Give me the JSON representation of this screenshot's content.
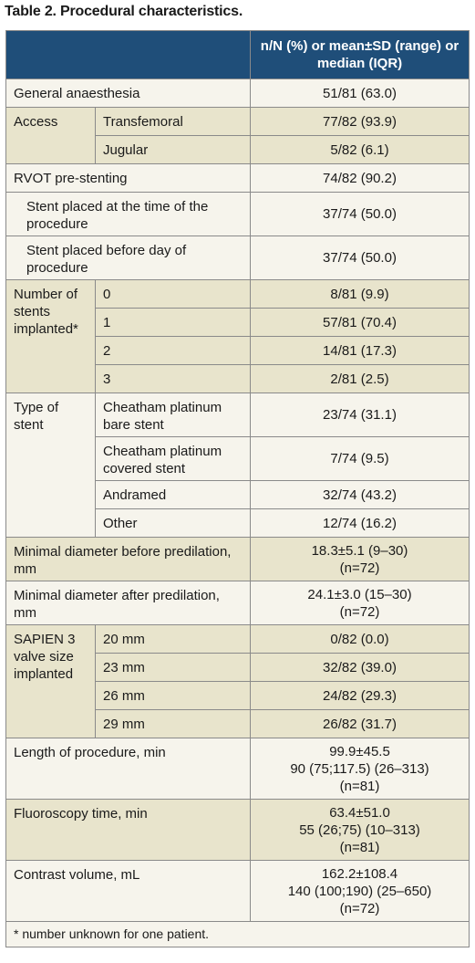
{
  "caption": "Table 2. Procedural characteristics.",
  "header": {
    "col_stat": "n/N (%) or mean±SD (range) or median (IQR)"
  },
  "rows": {
    "general_anaesthesia": {
      "label": "General anaesthesia",
      "value": "51/81 (63.0)"
    },
    "access": {
      "label": "Access",
      "items": [
        {
          "label": "Transfemoral",
          "value": "77/82 (93.9)"
        },
        {
          "label": "Jugular",
          "value": "5/82 (6.1)"
        }
      ]
    },
    "rvot_prestenting": {
      "label": "RVOT pre-stenting",
      "value": "74/82 (90.2)"
    },
    "stent_at_procedure": {
      "label": "Stent placed at the time of the procedure",
      "value": "37/74 (50.0)"
    },
    "stent_before_day": {
      "label": "Stent placed before day of procedure",
      "value": "37/74 (50.0)"
    },
    "num_stents": {
      "label": "Number of stents implanted*",
      "items": [
        {
          "label": "0",
          "value": "8/81 (9.9)"
        },
        {
          "label": "1",
          "value": "57/81 (70.4)"
        },
        {
          "label": "2",
          "value": "14/81 (17.3)"
        },
        {
          "label": "3",
          "value": "2/81 (2.5)"
        }
      ]
    },
    "stent_type": {
      "label": "Type of stent",
      "items": [
        {
          "label": "Cheatham platinum bare stent",
          "value": "23/74 (31.1)"
        },
        {
          "label": "Cheatham platinum covered stent",
          "value": "7/74 (9.5)"
        },
        {
          "label": "Andramed",
          "value": "32/74 (43.2)"
        },
        {
          "label": "Other",
          "value": "12/74 (16.2)"
        }
      ]
    },
    "min_diam_before": {
      "label": "Minimal diameter before predilation, mm",
      "value_line1": "18.3±5.1 (9–30)",
      "value_line2": "(n=72)"
    },
    "min_diam_after": {
      "label": "Minimal diameter after predilation, mm",
      "value_line1": "24.1±3.0 (15–30)",
      "value_line2": "(n=72)"
    },
    "valve_size": {
      "label": "SAPIEN 3 valve size implanted",
      "items": [
        {
          "label": "20 mm",
          "value": "0/82 (0.0)"
        },
        {
          "label": "23 mm",
          "value": "32/82 (39.0)"
        },
        {
          "label": "26 mm",
          "value": "24/82 (29.3)"
        },
        {
          "label": "29 mm",
          "value": "26/82 (31.7)"
        }
      ]
    },
    "length_procedure": {
      "label": "Length of procedure, min",
      "value_line1": "99.9±45.5",
      "value_line2": "90 (75;117.5) (26–313)",
      "value_line3": "(n=81)"
    },
    "fluoroscopy": {
      "label": "Fluoroscopy time, min",
      "value_line1": "63.4±51.0",
      "value_line2": "55 (26;75) (10–313)",
      "value_line3": "(n=81)"
    },
    "contrast": {
      "label": "Contrast volume, mL",
      "value_line1": "162.2±108.4",
      "value_line2": "140 (100;190) (25–650)",
      "value_line3": "(n=72)"
    }
  },
  "footnote": "* number unknown for one patient.",
  "colors": {
    "header_bg": "#1f4e79",
    "row_light": "#f6f4ec",
    "row_dark": "#e8e4cc",
    "border": "#8a8a8a"
  }
}
